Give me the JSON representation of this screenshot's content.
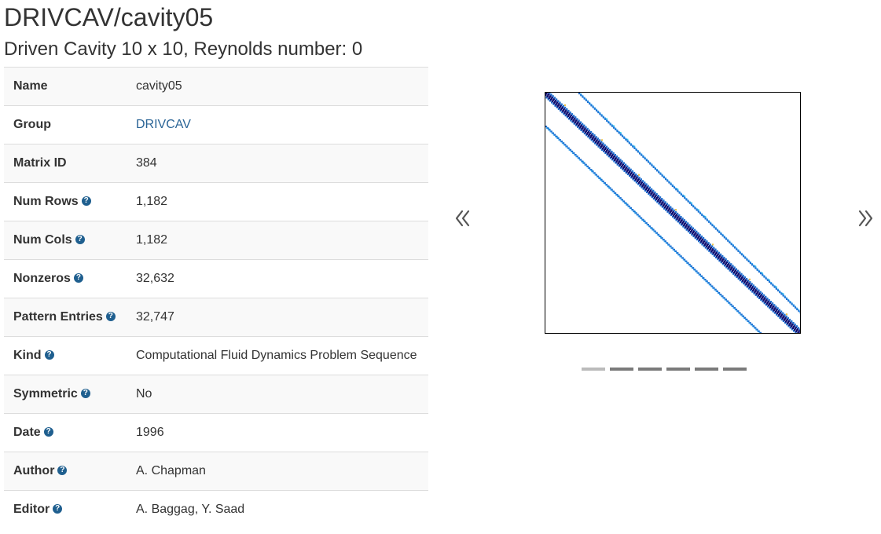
{
  "page": {
    "title": "DRIVCAV/cavity05",
    "subtitle": "Driven Cavity 10 x 10, Reynolds number: 0"
  },
  "info_rows": [
    {
      "label": "Name",
      "value": "cavity05",
      "help": false,
      "link": false
    },
    {
      "label": "Group",
      "value": "DRIVCAV",
      "help": false,
      "link": true
    },
    {
      "label": "Matrix ID",
      "value": "384",
      "help": false,
      "link": false
    },
    {
      "label": "Num Rows",
      "value": "1,182",
      "help": true,
      "link": false
    },
    {
      "label": "Num Cols",
      "value": "1,182",
      "help": true,
      "link": false
    },
    {
      "label": "Nonzeros",
      "value": "32,632",
      "help": true,
      "link": false
    },
    {
      "label": "Pattern Entries",
      "value": "32,747",
      "help": true,
      "link": false
    },
    {
      "label": "Kind",
      "value": "Computational Fluid Dynamics Problem Sequence",
      "help": true,
      "link": false
    },
    {
      "label": "Symmetric",
      "value": "No",
      "help": true,
      "link": false
    },
    {
      "label": "Date",
      "value": "1996",
      "help": true,
      "link": false
    },
    {
      "label": "Author",
      "value": "A. Chapman",
      "help": true,
      "link": false
    },
    {
      "label": "Editor",
      "value": "A. Baggag, Y. Saad",
      "help": true,
      "link": false
    }
  ],
  "help_glyph": "?",
  "carousel": {
    "prev_icon": "chevron-left-icon",
    "next_icon": "chevron-right-icon",
    "slide_count": 6,
    "active_slide": 0,
    "image": "sparsity-pattern-image",
    "colors": {
      "diagonal": "#0a0a6e",
      "band_dark": "#1f6fd0",
      "band_light": "#3fa9f0",
      "band_cyan": "#36d0e8",
      "accent_yellow": "#f0c040"
    }
  },
  "colors": {
    "link": "#2a6496",
    "help_icon": "#1f5f8f",
    "row_stripe": "#f9f9f9",
    "border": "#dddddd"
  }
}
